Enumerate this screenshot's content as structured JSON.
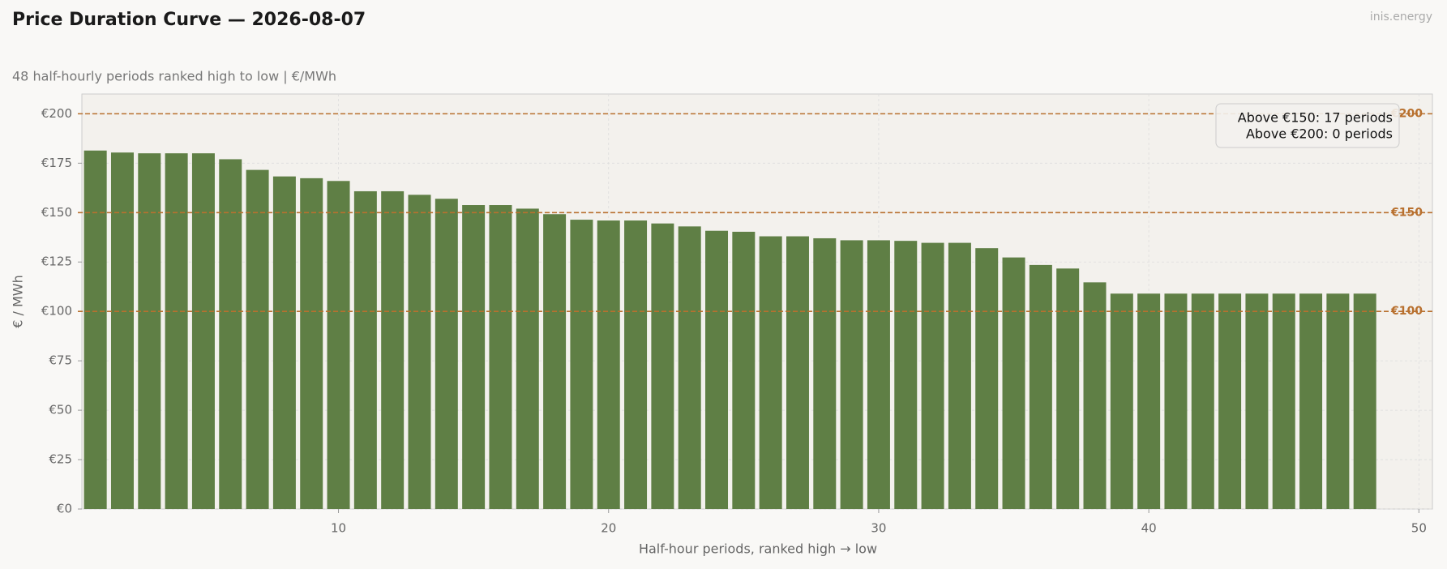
{
  "chart_data": {
    "type": "bar",
    "title": "Price Duration Curve — 2026-08-07",
    "subtitle": "48 half-hourly periods ranked high to low  |  €/MWh",
    "watermark": "inis.energy",
    "xlabel": "Half-hour periods, ranked high → low",
    "ylabel": "€ / MWh",
    "x": [
      1,
      2,
      3,
      4,
      5,
      6,
      7,
      8,
      9,
      10,
      11,
      12,
      13,
      14,
      15,
      16,
      17,
      18,
      19,
      20,
      21,
      22,
      23,
      24,
      25,
      26,
      27,
      28,
      29,
      30,
      31,
      32,
      33,
      34,
      35,
      36,
      37,
      38,
      39,
      40,
      41,
      42,
      43,
      44,
      45,
      46,
      47,
      48
    ],
    "values": [
      181.4,
      180.4,
      180,
      180,
      180,
      177,
      171.6,
      168.3,
      167.4,
      166,
      160.8,
      160.8,
      159,
      157,
      153.8,
      153.8,
      152,
      149.2,
      146.4,
      146,
      146,
      144.5,
      143,
      140.8,
      140.3,
      138,
      138,
      137,
      136,
      136,
      135.7,
      134.7,
      134.7,
      132,
      127.3,
      123.5,
      121.7,
      114.7,
      109,
      109,
      109,
      109,
      109,
      109,
      109,
      109,
      109,
      109
    ],
    "color": "#5f7f45",
    "xlim": [
      0.5,
      50.5
    ],
    "xticks": [
      10,
      20,
      30,
      40,
      50
    ],
    "ylim": [
      0,
      210
    ],
    "yticks": [
      {
        "value": 0,
        "label": "€0"
      },
      {
        "value": 25,
        "label": "€25"
      },
      {
        "value": 50,
        "label": "€50"
      },
      {
        "value": 75,
        "label": "€75"
      },
      {
        "value": 100,
        "label": "€100"
      },
      {
        "value": 125,
        "label": "€125"
      },
      {
        "value": 150,
        "label": "€150"
      },
      {
        "value": 175,
        "label": "€175"
      },
      {
        "value": 200,
        "label": "€200"
      }
    ],
    "grid": true,
    "reference_lines": [
      {
        "value": 100,
        "label": "€100"
      },
      {
        "value": 150,
        "label": "€150"
      },
      {
        "value": 200,
        "label": "€200"
      }
    ],
    "reference_color": "#b8702e",
    "annotations": [
      "Above €150: 17 periods",
      "Above €200: 0 periods"
    ]
  }
}
